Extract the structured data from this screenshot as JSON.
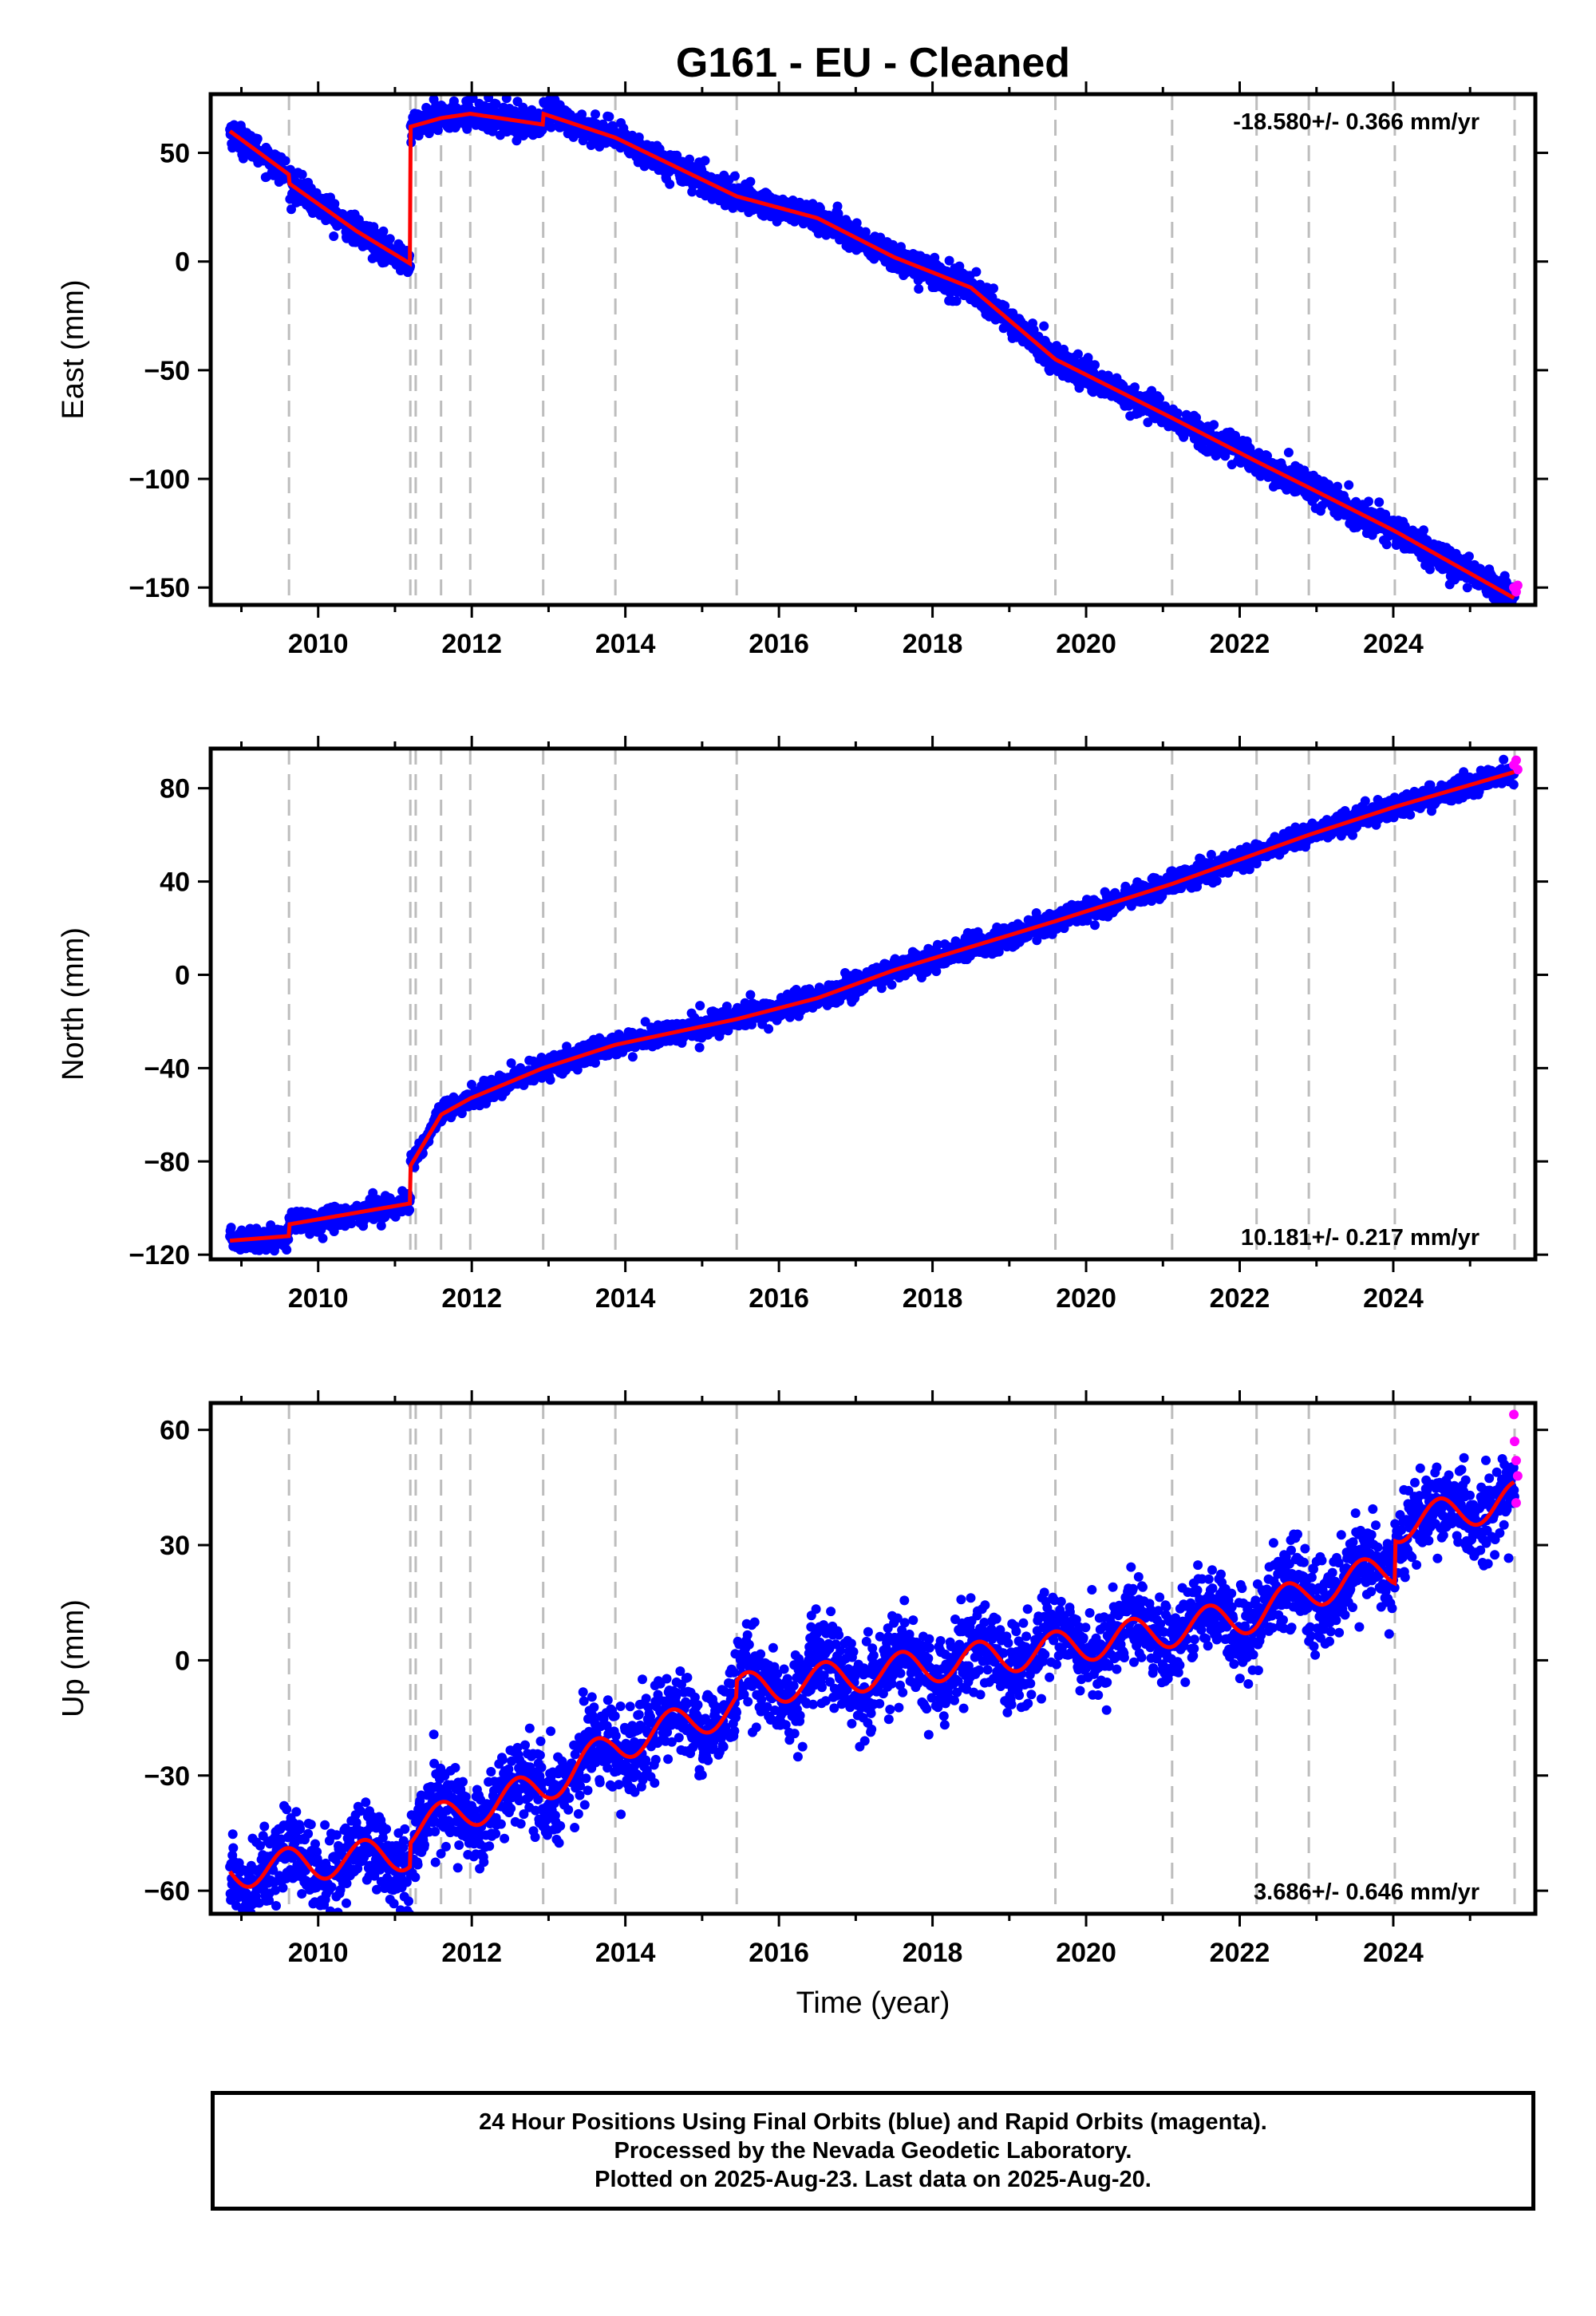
{
  "title": "G161  - EU - Cleaned",
  "x_axis_label": "Time (year)",
  "colors": {
    "final_orbits": "#0000ff",
    "rapid_orbits": "#ff00ff",
    "model": "#ff0000",
    "event_lines": "#bdbdbd"
  },
  "chart_data": [
    {
      "type": "scatter",
      "component": "East",
      "ylabel": "East (mm)",
      "rate_text": "-18.580+/- 0.366 mm/yr",
      "rate_position": "top-right",
      "xlim": [
        2008.6,
        2025.85
      ],
      "ylim": [
        -158,
        77
      ],
      "yticks": [
        50,
        0,
        -50,
        -100,
        -150
      ],
      "xticks": [
        2010,
        2012,
        2014,
        2016,
        2018,
        2020,
        2022,
        2024
      ],
      "grid": false,
      "event_lines": [
        2009.62,
        2011.2,
        2011.27,
        2011.6,
        2011.98,
        2012.93,
        2013.87,
        2015.45,
        2019.6,
        2021.12,
        2022.22,
        2022.9,
        2024.02,
        2025.58
      ],
      "model_trend": [
        [
          2008.85,
          60
        ],
        [
          2009.62,
          40
        ],
        [
          2009.62,
          36
        ],
        [
          2010.5,
          14
        ],
        [
          2011.2,
          -1
        ],
        [
          2011.2,
          62
        ],
        [
          2011.6,
          66
        ],
        [
          2011.98,
          68
        ],
        [
          2012.93,
          63
        ],
        [
          2012.93,
          68
        ],
        [
          2013.87,
          57
        ],
        [
          2015.45,
          30
        ],
        [
          2016.5,
          20
        ],
        [
          2017.5,
          2
        ],
        [
          2018.5,
          -12
        ],
        [
          2019.6,
          -45
        ],
        [
          2021.12,
          -72
        ],
        [
          2022.22,
          -92
        ],
        [
          2022.9,
          -104
        ],
        [
          2024.02,
          -124
        ],
        [
          2025.58,
          -155
        ]
      ],
      "scatter_spread_mm": 3.2,
      "rapid_points": [
        [
          2025.57,
          -150
        ],
        [
          2025.6,
          -152
        ],
        [
          2025.62,
          -149
        ]
      ]
    },
    {
      "type": "scatter",
      "component": "North",
      "ylabel": "North (mm)",
      "rate_text": "10.181+/- 0.217 mm/yr",
      "rate_position": "bottom-right",
      "xlim": [
        2008.6,
        2025.85
      ],
      "ylim": [
        -122,
        97
      ],
      "yticks": [
        80,
        40,
        0,
        -40,
        -80,
        -120
      ],
      "xticks": [
        2010,
        2012,
        2014,
        2016,
        2018,
        2020,
        2022,
        2024
      ],
      "grid": false,
      "event_lines": [
        2009.62,
        2011.2,
        2011.27,
        2011.6,
        2011.98,
        2012.93,
        2013.87,
        2015.45,
        2019.6,
        2021.12,
        2022.22,
        2022.9,
        2024.02,
        2025.58
      ],
      "model_trend": [
        [
          2008.85,
          -114
        ],
        [
          2009.62,
          -112
        ],
        [
          2009.62,
          -107
        ],
        [
          2011.2,
          -98
        ],
        [
          2011.2,
          -82
        ],
        [
          2011.6,
          -60
        ],
        [
          2011.98,
          -53
        ],
        [
          2012.93,
          -40
        ],
        [
          2013.87,
          -30
        ],
        [
          2015.45,
          -19
        ],
        [
          2016.5,
          -10
        ],
        [
          2017.5,
          2
        ],
        [
          2018.5,
          12
        ],
        [
          2019.6,
          23
        ],
        [
          2021.12,
          39
        ],
        [
          2022.22,
          52
        ],
        [
          2022.9,
          60
        ],
        [
          2024.02,
          72
        ],
        [
          2025.58,
          87
        ]
      ],
      "scatter_spread_mm": 2.4,
      "rapid_points": [
        [
          2025.57,
          90
        ],
        [
          2025.6,
          92
        ],
        [
          2025.62,
          88
        ]
      ]
    },
    {
      "type": "scatter",
      "component": "Up",
      "ylabel": "Up (mm)",
      "rate_text": "3.686+/- 0.646 mm/yr",
      "rate_position": "bottom-right",
      "xlim": [
        2008.6,
        2025.85
      ],
      "ylim": [
        -66,
        67
      ],
      "yticks": [
        60,
        30,
        0,
        -30,
        -60
      ],
      "xticks": [
        2010,
        2012,
        2014,
        2016,
        2018,
        2020,
        2022,
        2024
      ],
      "grid": false,
      "event_lines": [
        2009.62,
        2011.2,
        2011.27,
        2011.6,
        2011.98,
        2012.93,
        2013.87,
        2015.45,
        2019.6,
        2021.12,
        2022.22,
        2022.9,
        2024.02,
        2025.58
      ],
      "model_trend": [
        [
          2008.85,
          -55
        ],
        [
          2011.2,
          -50
        ],
        [
          2011.2,
          -44
        ],
        [
          2012.93,
          -33
        ],
        [
          2013.87,
          -22
        ],
        [
          2015.45,
          -12
        ],
        [
          2015.45,
          -8
        ],
        [
          2019.6,
          3
        ],
        [
          2021.12,
          8
        ],
        [
          2022.22,
          12
        ],
        [
          2022.9,
          18
        ],
        [
          2024.02,
          24
        ],
        [
          2024.02,
          35
        ],
        [
          2025.58,
          42
        ]
      ],
      "seasonal_amplitude_mm": 4.5,
      "scatter_spread_mm": 5.5,
      "rapid_points": [
        [
          2025.57,
          64
        ],
        [
          2025.58,
          57
        ],
        [
          2025.6,
          52
        ],
        [
          2025.62,
          48
        ],
        [
          2025.6,
          41
        ]
      ]
    }
  ],
  "footer": {
    "line1": "24 Hour Positions Using Final Orbits (blue) and Rapid Orbits (magenta).",
    "line2": "Processed by the Nevada Geodetic Laboratory.",
    "line3": "Plotted on 2025-Aug-23. Last data on 2025-Aug-20."
  }
}
